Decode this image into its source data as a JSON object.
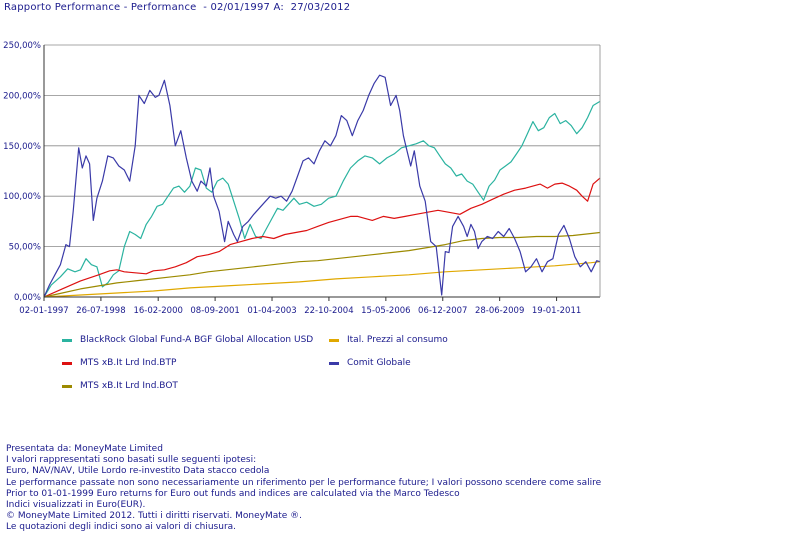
{
  "header": {
    "title": "Rapporto Performance - Performance  - 02/01/1997 A:  27/03/2012"
  },
  "chart_data": {
    "type": "line",
    "title": "Rapporto Performance - Performance  - 02/01/1997 A:  27/03/2012",
    "xlabel": "",
    "ylabel": "",
    "x_range": [
      1997.0,
      2012.24
    ],
    "ylim": [
      0,
      250
    ],
    "y_ticks": [
      0,
      50,
      100,
      150,
      200,
      250
    ],
    "y_tick_labels": [
      "0,00%",
      "50,00%",
      "100,00%",
      "150,00%",
      "200,00%",
      "250,00%"
    ],
    "x_ticks": [
      1997.0,
      1998.56,
      2000.13,
      2001.69,
      2003.25,
      2004.81,
      2006.37,
      2007.93,
      2009.49,
      2011.05
    ],
    "x_tick_labels": [
      "02-01-1997",
      "26-07-1998",
      "16-02-2000",
      "08-09-2001",
      "01-04-2003",
      "22-10-2004",
      "15-05-2006",
      "06-12-2007",
      "28-06-2009",
      "19-01-2011"
    ],
    "grid": true,
    "legend_position": "bottom",
    "series": [
      {
        "name": "BlackRock Global Fund-A BGF Global Allocation USD",
        "color": "#2bb3a0",
        "x": [
          1997.0,
          1997.2,
          1997.45,
          1997.65,
          1997.85,
          1998.0,
          1998.15,
          1998.3,
          1998.45,
          1998.6,
          1998.75,
          1998.9,
          1999.05,
          1999.2,
          1999.35,
          1999.5,
          1999.65,
          1999.8,
          1999.95,
          2000.1,
          2000.25,
          2000.4,
          2000.55,
          2000.7,
          2000.85,
          2001.0,
          2001.15,
          2001.3,
          2001.45,
          2001.6,
          2001.75,
          2001.9,
          2002.05,
          2002.2,
          2002.35,
          2002.5,
          2002.65,
          2002.8,
          2002.95,
          2003.1,
          2003.25,
          2003.4,
          2003.55,
          2003.7,
          2003.85,
          2004.0,
          2004.2,
          2004.4,
          2004.6,
          2004.8,
          2005.0,
          2005.2,
          2005.4,
          2005.6,
          2005.8,
          2006.0,
          2006.2,
          2006.4,
          2006.6,
          2006.8,
          2007.0,
          2007.2,
          2007.4,
          2007.55,
          2007.7,
          2007.85,
          2008.0,
          2008.15,
          2008.3,
          2008.45,
          2008.6,
          2008.75,
          2008.9,
          2009.05,
          2009.2,
          2009.35,
          2009.5,
          2009.65,
          2009.8,
          2009.95,
          2010.1,
          2010.25,
          2010.4,
          2010.55,
          2010.7,
          2010.85,
          2011.0,
          2011.15,
          2011.3,
          2011.45,
          2011.6,
          2011.75,
          2011.9,
          2012.05,
          2012.24
        ],
        "values": [
          0,
          12,
          20,
          28,
          25,
          27,
          38,
          32,
          30,
          10,
          14,
          22,
          26,
          50,
          65,
          62,
          58,
          72,
          80,
          90,
          92,
          100,
          108,
          110,
          104,
          110,
          128,
          126,
          108,
          104,
          115,
          118,
          112,
          95,
          78,
          58,
          72,
          60,
          58,
          68,
          78,
          88,
          86,
          92,
          98,
          92,
          94,
          90,
          92,
          98,
          100,
          115,
          128,
          135,
          140,
          138,
          132,
          138,
          142,
          148,
          150,
          152,
          155,
          150,
          148,
          140,
          132,
          128,
          120,
          122,
          115,
          112,
          104,
          96,
          110,
          116,
          126,
          130,
          134,
          142,
          150,
          162,
          174,
          165,
          168,
          178,
          182,
          172,
          175,
          170,
          162,
          168,
          178,
          190,
          194
        ]
      },
      {
        "name": "MTS xB.It Lrd  Ind.BTP",
        "color": "#dd1111",
        "x": [
          1997.0,
          1997.5,
          1998.0,
          1998.5,
          1998.8,
          1999.0,
          1999.2,
          1999.5,
          1999.8,
          2000.0,
          2000.3,
          2000.6,
          2000.9,
          2001.2,
          2001.5,
          2001.8,
          2002.1,
          2002.4,
          2002.7,
          2003.0,
          2003.3,
          2003.6,
          2003.9,
          2004.2,
          2004.5,
          2004.8,
          2005.0,
          2005.2,
          2005.4,
          2005.6,
          2005.8,
          2006.0,
          2006.3,
          2006.6,
          2006.9,
          2007.2,
          2007.5,
          2007.8,
          2008.1,
          2008.4,
          2008.7,
          2009.0,
          2009.3,
          2009.6,
          2009.9,
          2010.2,
          2010.4,
          2010.6,
          2010.8,
          2011.0,
          2011.2,
          2011.4,
          2011.6,
          2011.75,
          2011.9,
          2012.05,
          2012.24
        ],
        "values": [
          0,
          8,
          16,
          22,
          26,
          27,
          25,
          24,
          23,
          26,
          27,
          30,
          34,
          40,
          42,
          45,
          52,
          55,
          58,
          60,
          58,
          62,
          64,
          66,
          70,
          74,
          76,
          78,
          80,
          80,
          78,
          76,
          80,
          78,
          80,
          82,
          84,
          86,
          84,
          82,
          88,
          92,
          97,
          102,
          106,
          108,
          110,
          112,
          108,
          112,
          113,
          110,
          106,
          100,
          95,
          112,
          118
        ]
      },
      {
        "name": "MTS xB.It Lrd  Ind.BOT",
        "color": "#9c8a00",
        "x": [
          1997.0,
          1997.5,
          1998.0,
          1998.5,
          1999.0,
          1999.5,
          2000.0,
          2000.5,
          2001.0,
          2001.5,
          2002.0,
          2002.5,
          2003.0,
          2003.5,
          2004.0,
          2004.5,
          2005.0,
          2005.5,
          2006.0,
          2006.5,
          2007.0,
          2007.5,
          2008.0,
          2008.5,
          2009.0,
          2009.5,
          2010.0,
          2010.5,
          2011.0,
          2011.5,
          2012.0,
          2012.24
        ],
        "values": [
          0,
          4,
          8,
          11,
          14,
          16,
          18,
          20,
          22,
          25,
          27,
          29,
          31,
          33,
          35,
          36,
          38,
          40,
          42,
          44,
          46,
          49,
          52,
          56,
          58,
          59,
          59,
          60,
          60,
          61,
          63,
          64
        ]
      },
      {
        "name": "Ital. Prezzi al consumo",
        "color": "#e0a800",
        "x": [
          1997.0,
          1998.0,
          1999.0,
          2000.0,
          2001.0,
          2002.0,
          2003.0,
          2004.0,
          2005.0,
          2006.0,
          2007.0,
          2008.0,
          2009.0,
          2010.0,
          2011.0,
          2012.0,
          2012.24
        ],
        "values": [
          0,
          2,
          4,
          6,
          9,
          11,
          13,
          15,
          18,
          20,
          22,
          25,
          27,
          29,
          31,
          34,
          35
        ]
      },
      {
        "name": "Comit  Globale",
        "color": "#3a3aa8",
        "x": [
          1997.0,
          1997.15,
          1997.3,
          1997.45,
          1997.6,
          1997.7,
          1997.8,
          1997.95,
          1998.05,
          1998.15,
          1998.25,
          1998.35,
          1998.45,
          1998.6,
          1998.75,
          1998.9,
          1999.05,
          1999.2,
          1999.35,
          1999.5,
          1999.6,
          1999.75,
          1999.9,
          2000.05,
          2000.15,
          2000.3,
          2000.45,
          2000.6,
          2000.75,
          2000.9,
          2001.05,
          2001.2,
          2001.3,
          2001.45,
          2001.55,
          2001.65,
          2001.8,
          2001.95,
          2002.05,
          2002.2,
          2002.3,
          2002.45,
          2002.6,
          2002.75,
          2002.9,
          2003.05,
          2003.2,
          2003.35,
          2003.5,
          2003.65,
          2003.8,
          2003.95,
          2004.1,
          2004.25,
          2004.4,
          2004.55,
          2004.7,
          2004.85,
          2005.0,
          2005.15,
          2005.3,
          2005.45,
          2005.6,
          2005.75,
          2005.9,
          2006.05,
          2006.2,
          2006.35,
          2006.5,
          2006.65,
          2006.75,
          2006.85,
          2006.95,
          2007.05,
          2007.15,
          2007.3,
          2007.45,
          2007.6,
          2007.75,
          2007.9,
          2008.0,
          2008.1,
          2008.2,
          2008.35,
          2008.5,
          2008.6,
          2008.7,
          2008.8,
          2008.9,
          2009.0,
          2009.15,
          2009.3,
          2009.45,
          2009.6,
          2009.75,
          2009.9,
          2010.05,
          2010.2,
          2010.35,
          2010.5,
          2010.65,
          2010.8,
          2010.95,
          2011.1,
          2011.25,
          2011.4,
          2011.55,
          2011.7,
          2011.85,
          2012.0,
          2012.15,
          2012.24
        ],
        "values": [
          0,
          12,
          22,
          32,
          52,
          50,
          85,
          148,
          128,
          140,
          132,
          76,
          98,
          115,
          140,
          138,
          130,
          126,
          115,
          150,
          200,
          192,
          205,
          198,
          200,
          215,
          190,
          150,
          165,
          138,
          115,
          105,
          115,
          110,
          128,
          100,
          85,
          55,
          75,
          62,
          55,
          70,
          75,
          82,
          88,
          94,
          100,
          98,
          100,
          95,
          105,
          120,
          135,
          138,
          132,
          145,
          155,
          150,
          160,
          180,
          175,
          160,
          175,
          185,
          200,
          212,
          220,
          218,
          190,
          200,
          185,
          160,
          145,
          130,
          145,
          110,
          95,
          55,
          50,
          2,
          45,
          44,
          70,
          80,
          70,
          60,
          72,
          65,
          48,
          55,
          60,
          58,
          65,
          60,
          68,
          58,
          45,
          25,
          30,
          38,
          25,
          35,
          38,
          62,
          71,
          58,
          40,
          30,
          35,
          25,
          36,
          35
        ]
      }
    ]
  },
  "legend": {
    "items": [
      {
        "label": "BlackRock Global Fund-A BGF Global Allocation USD",
        "color": "#2bb3a0"
      },
      {
        "label": "Ital. Prezzi al consumo",
        "color": "#e0a800"
      },
      {
        "label": "MTS xB.It Lrd  Ind.BTP",
        "color": "#dd1111"
      },
      {
        "label": "Comit  Globale",
        "color": "#3a3aa8"
      },
      {
        "label": "MTS xB.It Lrd  Ind.BOT",
        "color": "#9c8a00"
      }
    ]
  },
  "notes": {
    "lines": [
      "Presentata da: MoneyMate Limited",
      "I valori rappresentati sono basati sulle seguenti ipotesi:",
      "Euro, NAV/NAV, Utile Lordo re-investito Data stacco cedola",
      "Le performance passate non sono necessariamente un riferimento per le performance future; I valori possono scendere come salire",
      "Prior to 01-01-1999 Euro returns for Euro out funds and indices are calculated via the Marco Tedesco",
      "Indici visualizzati in Euro(EUR).",
      "© MoneyMate Limited 2012. Tutti i diritti riservati. MoneyMate ®.",
      "Le quotazioni degli indici sono ai valori di chiusura."
    ]
  }
}
